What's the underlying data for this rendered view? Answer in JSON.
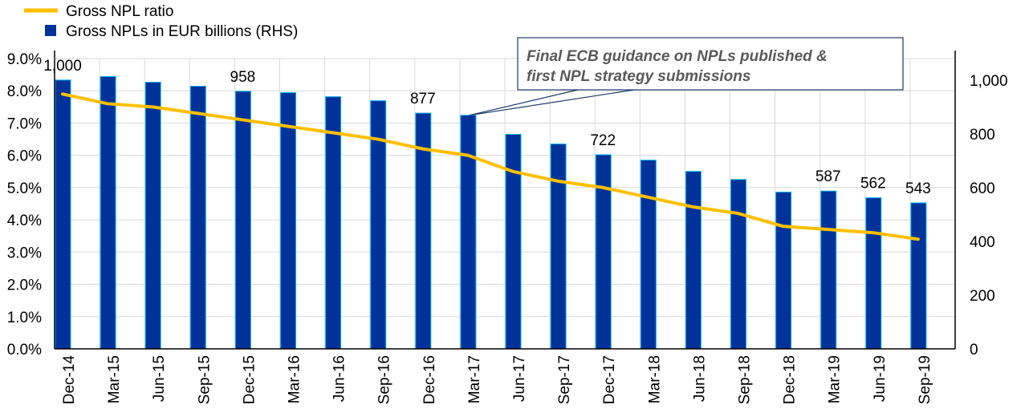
{
  "chart_data": {
    "type": "bar+line",
    "legend": [
      {
        "label": "Gross NPL ratio",
        "color": "#FFBF00",
        "kind": "line"
      },
      {
        "label": "Gross NPLs in EUR billions (RHS)",
        "color": "#003299",
        "kind": "bar"
      }
    ],
    "legend_position": "top-left",
    "categories": [
      "Dec-14",
      "Mar-15",
      "Jun-15",
      "Sep-15",
      "Dec-15",
      "Mar-16",
      "Jun-16",
      "Sep-16",
      "Dec-16",
      "Mar-17",
      "Jun-17",
      "Sep-17",
      "Dec-17",
      "Mar-18",
      "Jun-18",
      "Sep-18",
      "Dec-18",
      "Mar-19",
      "Jun-19",
      "Sep-19"
    ],
    "series": [
      {
        "name": "Gross NPL ratio",
        "axis": "left",
        "unit": "%",
        "values": [
          7.9,
          7.6,
          7.5,
          7.3,
          7.1,
          6.9,
          6.7,
          6.5,
          6.2,
          6.0,
          5.5,
          5.2,
          5.0,
          4.7,
          4.4,
          4.2,
          3.8,
          3.7,
          3.6,
          3.4
        ]
      },
      {
        "name": "Gross NPLs in EUR billions (RHS)",
        "axis": "right",
        "unit": "EUR bn",
        "values": [
          1000,
          1013,
          992,
          977,
          958,
          953,
          938,
          923,
          877,
          869,
          798,
          762,
          722,
          702,
          660,
          630,
          583,
          587,
          562,
          543
        ]
      }
    ],
    "data_labels": [
      {
        "index": 0,
        "text": "1,000"
      },
      {
        "index": 4,
        "text": "958"
      },
      {
        "index": 8,
        "text": "877"
      },
      {
        "index": 12,
        "text": "722"
      },
      {
        "index": 17,
        "text": "587"
      },
      {
        "index": 18,
        "text": "562"
      },
      {
        "index": 19,
        "text": "543"
      }
    ],
    "left_axis": {
      "range": [
        0,
        9
      ],
      "ticks": [
        "0.0%",
        "1.0%",
        "2.0%",
        "3.0%",
        "4.0%",
        "5.0%",
        "6.0%",
        "7.0%",
        "8.0%",
        "9.0%"
      ]
    },
    "right_axis": {
      "range": [
        0,
        1080
      ],
      "ticks": [
        "0",
        "200",
        "400",
        "600",
        "800",
        "1,000"
      ],
      "tick_values": [
        0,
        200,
        400,
        600,
        800,
        1000
      ]
    },
    "grid": true,
    "annotation": {
      "lines": [
        "Final ECB guidance  on NPLs published &",
        "first NPL strategy submissions"
      ],
      "points_to": "Mar-17"
    }
  }
}
